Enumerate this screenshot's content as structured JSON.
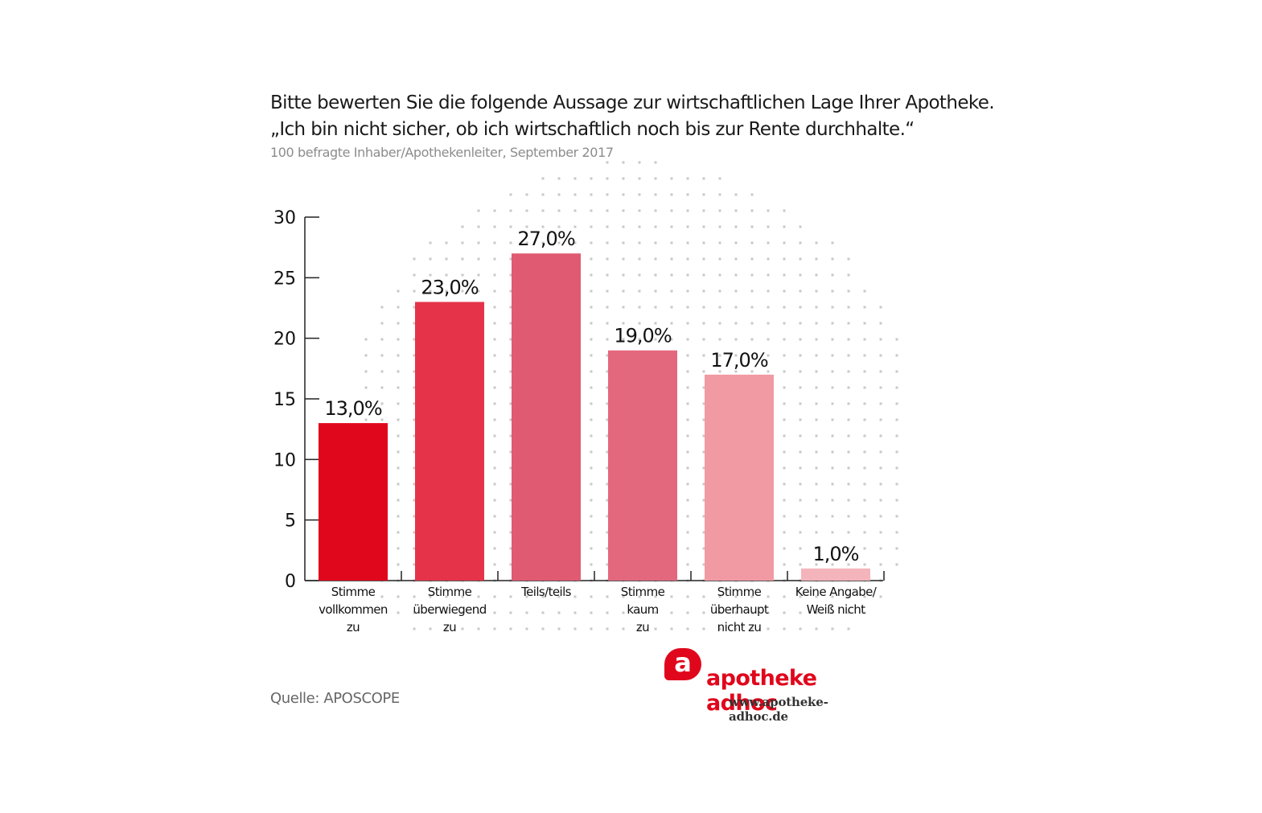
{
  "header": {
    "title_line1": "Bitte bewerten Sie die folgende Aussage zur wirtschaftlichen Lage Ihrer Apotheke.",
    "title_line2": "„Ich bin nicht sicher, ob ich wirtschaftlich noch bis zur Rente durchhalte.“",
    "subtitle": "100 befragte Inhaber/Apothekenleiter, September 2017"
  },
  "footer": {
    "source": "Quelle: APOSCOPE",
    "logo_letter": "a",
    "logo_name": "apotheke adhoc",
    "logo_url": "www.apotheke-adhoc.de"
  },
  "chart_data": {
    "type": "bar",
    "title": "Bitte bewerten Sie die folgende Aussage zur wirtschaftlichen Lage Ihrer Apotheke. „Ich bin nicht sicher, ob ich wirtschaftlich noch bis zur Rente durchhalte.“",
    "subtitle": "100 befragte Inhaber/Apothekenleiter, September 2017",
    "xlabel": "",
    "ylabel": "",
    "ylim": [
      0,
      30
    ],
    "yticks": [
      0,
      5,
      10,
      15,
      20,
      25,
      30
    ],
    "grid": false,
    "categories": [
      [
        "Stimme",
        "vollkommen",
        "zu"
      ],
      [
        "Stimme",
        "überwiegend",
        "zu"
      ],
      [
        "Teils/teils"
      ],
      [
        "Stimme",
        "kaum",
        "zu"
      ],
      [
        "Stimme",
        "überhaupt",
        "nicht zu"
      ],
      [
        "Keine Angabe/",
        "Weiß nicht"
      ]
    ],
    "values": [
      13.0,
      23.0,
      27.0,
      19.0,
      17.0,
      1.0
    ],
    "data_labels": [
      "13,0%",
      "23,0%",
      "27,0%",
      "19,0%",
      "17,0%",
      "1,0%"
    ],
    "colors": [
      "#e0071c",
      "#e5344a",
      "#e05a72",
      "#e4687d",
      "#f29aa3",
      "#f4b4bc"
    ]
  }
}
